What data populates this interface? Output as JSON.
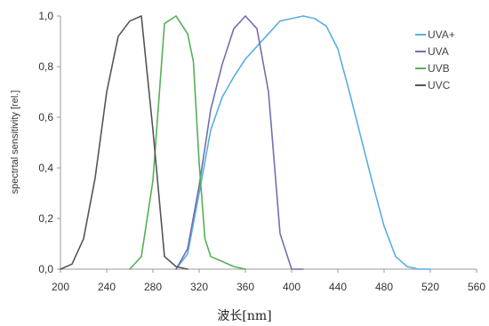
{
  "chart_data": {
    "type": "line",
    "title": "",
    "xlabel": "波长[nm]",
    "ylabel": "spectrtal sensitivity [rel.]",
    "xlim": [
      200,
      560
    ],
    "ylim": [
      0,
      1
    ],
    "xticks": [
      200,
      240,
      280,
      320,
      360,
      400,
      440,
      480,
      520,
      560
    ],
    "yticks": [
      0,
      0.2,
      0.4,
      0.6,
      0.8,
      1
    ],
    "ytick_labels": [
      "0,0",
      "0,2",
      "0,4",
      "0,6",
      "0,8",
      "1,0"
    ],
    "grid": false,
    "legend_position": "top-right",
    "series": [
      {
        "name": "UVA+",
        "color": "#5aaee0",
        "points": [
          [
            300,
            0
          ],
          [
            310,
            0.06
          ],
          [
            320,
            0.3
          ],
          [
            330,
            0.55
          ],
          [
            340,
            0.68
          ],
          [
            350,
            0.76
          ],
          [
            360,
            0.83
          ],
          [
            370,
            0.88
          ],
          [
            380,
            0.93
          ],
          [
            390,
            0.98
          ],
          [
            400,
            0.99
          ],
          [
            410,
            1.0
          ],
          [
            420,
            0.99
          ],
          [
            430,
            0.96
          ],
          [
            440,
            0.87
          ],
          [
            450,
            0.7
          ],
          [
            460,
            0.52
          ],
          [
            470,
            0.34
          ],
          [
            480,
            0.17
          ],
          [
            490,
            0.05
          ],
          [
            500,
            0.01
          ],
          [
            510,
            0
          ],
          [
            520,
            0
          ]
        ]
      },
      {
        "name": "UVA",
        "color": "#7070b0",
        "points": [
          [
            300,
            0
          ],
          [
            310,
            0.08
          ],
          [
            320,
            0.33
          ],
          [
            330,
            0.63
          ],
          [
            340,
            0.81
          ],
          [
            350,
            0.95
          ],
          [
            360,
            1.0
          ],
          [
            370,
            0.95
          ],
          [
            380,
            0.7
          ],
          [
            390,
            0.14
          ],
          [
            400,
            0
          ],
          [
            410,
            0
          ]
        ]
      },
      {
        "name": "UVB",
        "color": "#55b055",
        "points": [
          [
            260,
            0
          ],
          [
            270,
            0.05
          ],
          [
            280,
            0.35
          ],
          [
            290,
            0.97
          ],
          [
            300,
            1.0
          ],
          [
            310,
            0.93
          ],
          [
            315,
            0.82
          ],
          [
            320,
            0.42
          ],
          [
            325,
            0.12
          ],
          [
            330,
            0.05
          ],
          [
            340,
            0.03
          ],
          [
            350,
            0.01
          ],
          [
            360,
            0
          ]
        ]
      },
      {
        "name": "UVC",
        "color": "#555555",
        "points": [
          [
            200,
            0
          ],
          [
            210,
            0.02
          ],
          [
            220,
            0.12
          ],
          [
            230,
            0.36
          ],
          [
            240,
            0.7
          ],
          [
            250,
            0.92
          ],
          [
            260,
            0.98
          ],
          [
            270,
            1.0
          ],
          [
            280,
            0.55
          ],
          [
            290,
            0.05
          ],
          [
            300,
            0.01
          ],
          [
            310,
            0
          ]
        ]
      }
    ]
  }
}
